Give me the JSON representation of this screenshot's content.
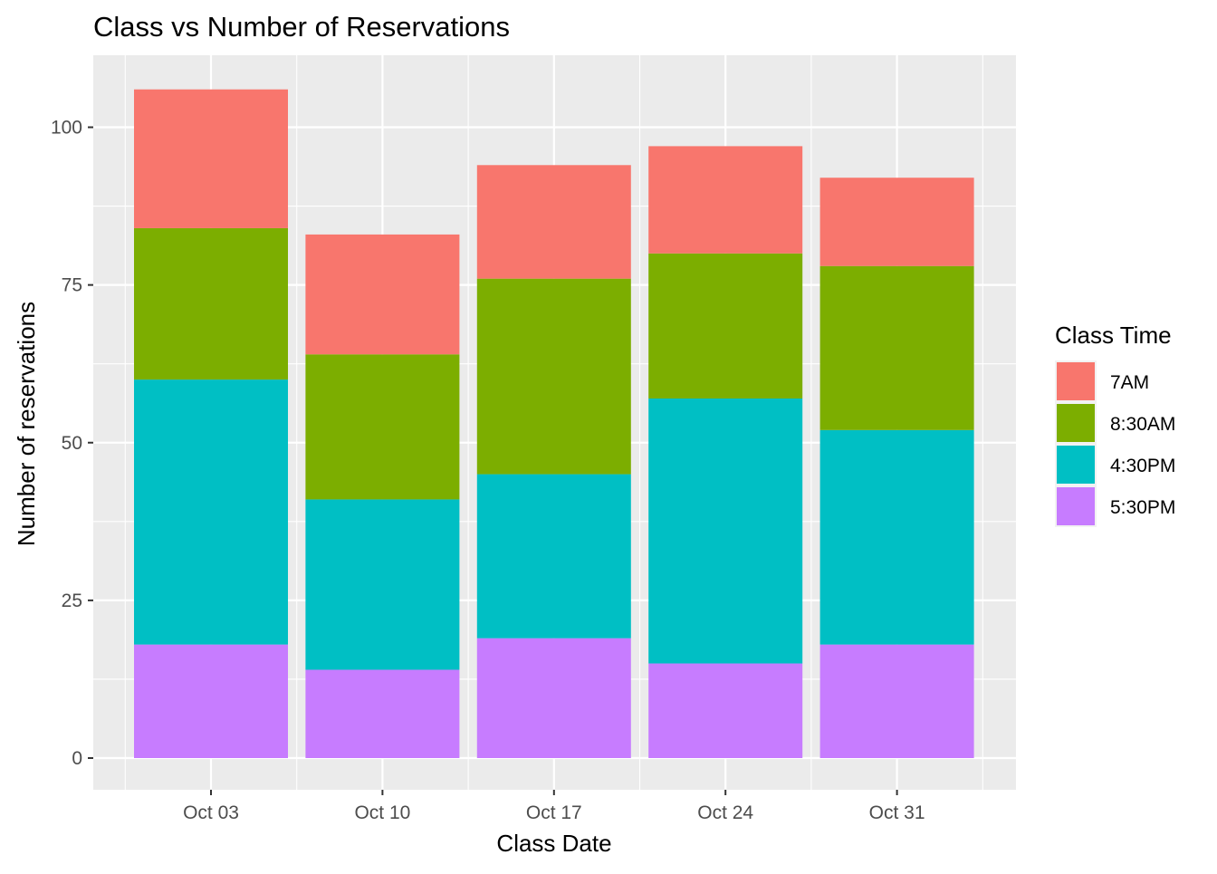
{
  "chart_data": {
    "type": "bar",
    "stacked": true,
    "title": "Class vs Number of Reservations",
    "xlabel": "Class Date",
    "ylabel": "Number of reservations",
    "categories": [
      "Oct 03",
      "Oct 10",
      "Oct 17",
      "Oct 24",
      "Oct 31"
    ],
    "yticks": [
      0,
      25,
      50,
      75,
      100
    ],
    "ylim": [
      -5,
      111
    ],
    "grid": true,
    "legend_title": "Class Time",
    "legend_position": "right",
    "series": [
      {
        "name": "7AM",
        "color": "#F8766D",
        "values": [
          22,
          19,
          18,
          17,
          14
        ]
      },
      {
        "name": "8:30AM",
        "color": "#7CAE00",
        "values": [
          24,
          23,
          31,
          23,
          26
        ]
      },
      {
        "name": "4:30PM",
        "color": "#00BFC4",
        "values": [
          42,
          27,
          26,
          42,
          34
        ]
      },
      {
        "name": "5:30PM",
        "color": "#C77CFF",
        "values": [
          18,
          14,
          19,
          15,
          18
        ]
      }
    ]
  }
}
